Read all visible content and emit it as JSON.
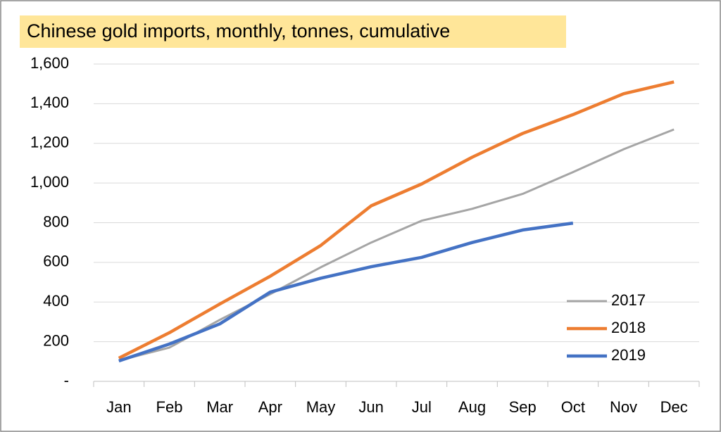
{
  "chart_data": {
    "type": "line",
    "title": "Chinese gold imports, monthly, tonnes, cumulative",
    "categories": [
      "Jan",
      "Feb",
      "Mar",
      "Apr",
      "May",
      "Jun",
      "Jul",
      "Aug",
      "Sep",
      "Oct",
      "Nov",
      "Dec"
    ],
    "series": [
      {
        "name": "2017",
        "color": "#a5a5a5",
        "values": [
          105,
          170,
          310,
          440,
          575,
          700,
          810,
          870,
          945,
          1055,
          1170,
          1270
        ]
      },
      {
        "name": "2018",
        "color": "#ed7d31",
        "values": [
          117,
          245,
          390,
          530,
          685,
          885,
          995,
          1130,
          1250,
          1345,
          1450,
          1510
        ]
      },
      {
        "name": "2019",
        "color": "#4472c4",
        "values": [
          103,
          188,
          290,
          450,
          520,
          578,
          625,
          700,
          763,
          798,
          null,
          null
        ]
      }
    ],
    "ylim": [
      0,
      1600
    ],
    "yticks": [
      {
        "value": 0,
        "label": "-"
      },
      200,
      400,
      600,
      800,
      {
        "value": 1000,
        "label": "1,000"
      },
      {
        "value": 1200,
        "label": "1,200"
      },
      {
        "value": 1400,
        "label": "1,400"
      },
      {
        "value": 1600,
        "label": "1,600"
      }
    ],
    "grid": true,
    "legend": "lower right"
  }
}
